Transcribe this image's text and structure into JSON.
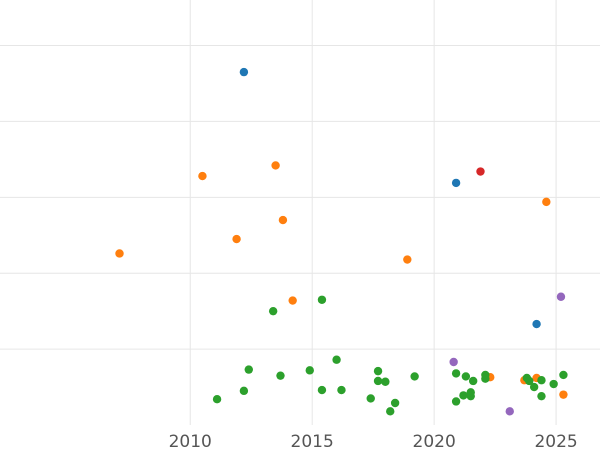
{
  "chart_data": {
    "type": "scatter",
    "title": "",
    "xlabel": "",
    "ylabel": "",
    "xlim": [
      2002.2,
      2026.8
    ],
    "ylim": [
      0,
      5.6
    ],
    "grid": true,
    "x_ticks": [
      2010,
      2015,
      2020,
      2025
    ],
    "x_tick_labels": [
      "2010",
      "2015",
      "2020",
      "2025"
    ],
    "y_gridlines": [
      1,
      2,
      3,
      4,
      5
    ],
    "series": [
      {
        "color": "#1f77b4",
        "points": [
          [
            2012.2,
            4.65
          ],
          [
            2020.9,
            3.19
          ],
          [
            2024.2,
            1.33
          ]
        ]
      },
      {
        "color": "#ff7f0e",
        "points": [
          [
            2007.1,
            2.26
          ],
          [
            2010.5,
            3.28
          ],
          [
            2011.9,
            2.45
          ],
          [
            2013.5,
            3.42
          ],
          [
            2013.8,
            2.7
          ],
          [
            2014.2,
            1.64
          ],
          [
            2018.9,
            2.18
          ],
          [
            2022.3,
            0.63
          ],
          [
            2023.7,
            0.59
          ],
          [
            2024.2,
            0.62
          ],
          [
            2024.6,
            2.94
          ],
          [
            2025.3,
            0.4
          ]
        ]
      },
      {
        "color": "#2ca02c",
        "points": [
          [
            2011.1,
            0.34
          ],
          [
            2012.2,
            0.45
          ],
          [
            2012.4,
            0.73
          ],
          [
            2013.4,
            1.5
          ],
          [
            2013.7,
            0.65
          ],
          [
            2014.9,
            0.72
          ],
          [
            2015.4,
            0.46
          ],
          [
            2015.4,
            1.65
          ],
          [
            2016.0,
            0.86
          ],
          [
            2016.2,
            0.46
          ],
          [
            2017.4,
            0.35
          ],
          [
            2017.7,
            0.71
          ],
          [
            2017.7,
            0.58
          ],
          [
            2018.0,
            0.57
          ],
          [
            2018.2,
            0.18
          ],
          [
            2018.4,
            0.29
          ],
          [
            2019.2,
            0.64
          ],
          [
            2020.9,
            0.68
          ],
          [
            2020.9,
            0.31
          ],
          [
            2021.2,
            0.39
          ],
          [
            2021.3,
            0.64
          ],
          [
            2021.5,
            0.38
          ],
          [
            2021.5,
            0.43
          ],
          [
            2021.6,
            0.58
          ],
          [
            2022.1,
            0.66
          ],
          [
            2022.1,
            0.61
          ],
          [
            2023.8,
            0.62
          ],
          [
            2023.9,
            0.58
          ],
          [
            2024.1,
            0.5
          ],
          [
            2024.4,
            0.59
          ],
          [
            2024.4,
            0.38
          ],
          [
            2024.9,
            0.54
          ],
          [
            2025.3,
            0.66
          ]
        ]
      },
      {
        "color": "#d62728",
        "points": [
          [
            2021.9,
            3.34
          ]
        ]
      },
      {
        "color": "#9467bd",
        "points": [
          [
            2020.8,
            0.83
          ],
          [
            2023.1,
            0.18
          ],
          [
            2025.2,
            1.69
          ]
        ]
      }
    ]
  }
}
